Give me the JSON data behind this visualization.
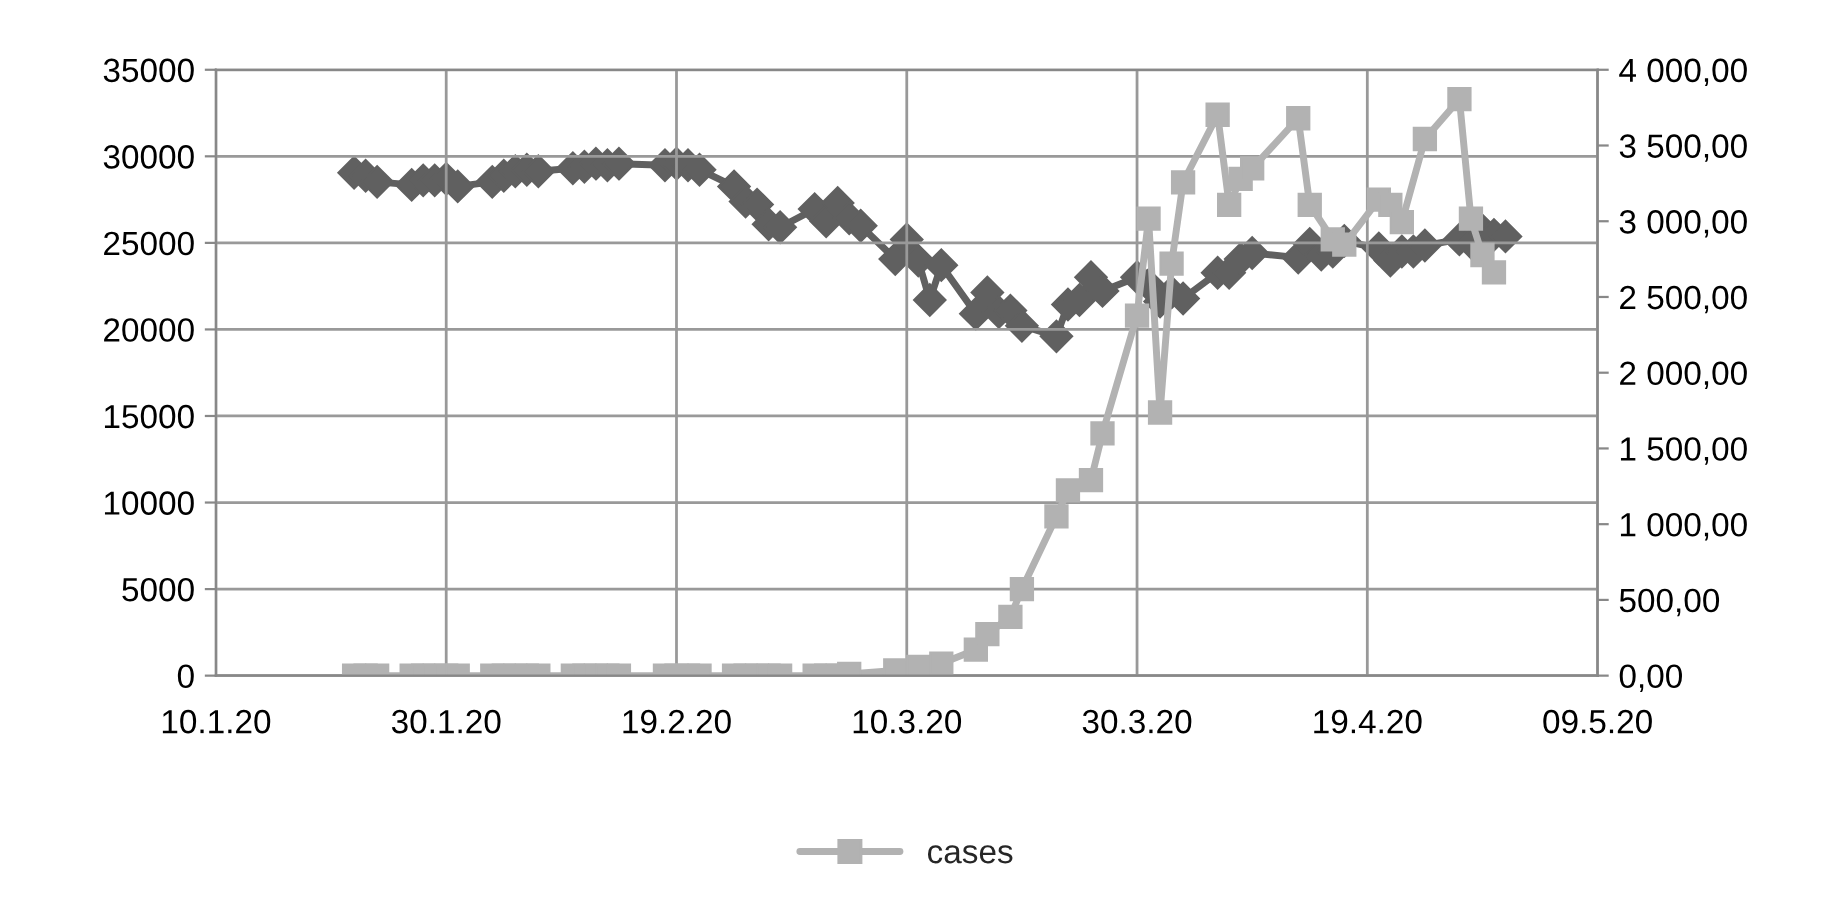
{
  "chart_data": {
    "type": "line",
    "xlim": [
      "2020-01-10",
      "2020-05-09"
    ],
    "xticks": [
      {
        "value": "2020-01-10",
        "label": "10.1.20"
      },
      {
        "value": "2020-01-30",
        "label": "30.1.20"
      },
      {
        "value": "2020-02-19",
        "label": "19.2.20"
      },
      {
        "value": "2020-03-10",
        "label": "10.3.20"
      },
      {
        "value": "2020-03-30",
        "label": "30.3.20"
      },
      {
        "value": "2020-04-19",
        "label": "19.4.20"
      },
      {
        "value": "2020-05-09",
        "label": "09.5.20"
      }
    ],
    "ylim": [
      0,
      35000
    ],
    "yticks": [
      0,
      5000,
      10000,
      15000,
      20000,
      25000,
      30000,
      35000
    ],
    "y2lim": [
      0,
      4000
    ],
    "y2ticks": [
      {
        "value": 0,
        "label": "0,00"
      },
      {
        "value": 500,
        "label": "500,00"
      },
      {
        "value": 1000,
        "label": "1 000,00"
      },
      {
        "value": 1500,
        "label": "1 500,00"
      },
      {
        "value": 2000,
        "label": "2 000,00"
      },
      {
        "value": 2500,
        "label": "2 500,00"
      },
      {
        "value": 3000,
        "label": "3 000,00"
      },
      {
        "value": 3500,
        "label": "3 500,00"
      },
      {
        "value": 4000,
        "label": "4 000,00"
      }
    ],
    "grid": true,
    "legend": "bottom",
    "series": [
      {
        "name": "cases",
        "color": "#b2b2b2",
        "marker": "square",
        "x": [
          "2020-01-22",
          "2020-01-23",
          "2020-01-24",
          "2020-01-27",
          "2020-01-28",
          "2020-01-29",
          "2020-01-30",
          "2020-01-31",
          "2020-02-03",
          "2020-02-04",
          "2020-02-05",
          "2020-02-06",
          "2020-02-07",
          "2020-02-10",
          "2020-02-11",
          "2020-02-12",
          "2020-02-13",
          "2020-02-14",
          "2020-02-18",
          "2020-02-19",
          "2020-02-20",
          "2020-02-21",
          "2020-02-24",
          "2020-02-25",
          "2020-02-26",
          "2020-02-27",
          "2020-02-28",
          "2020-03-02",
          "2020-03-03",
          "2020-03-04",
          "2020-03-05",
          "2020-03-09",
          "2020-03-11",
          "2020-03-13",
          "2020-03-16",
          "2020-03-17",
          "2020-03-19",
          "2020-03-20",
          "2020-03-23",
          "2020-03-24",
          "2020-03-26",
          "2020-03-27",
          "2020-03-30",
          "2020-03-31",
          "2020-04-01",
          "2020-04-02",
          "2020-04-03",
          "2020-04-06",
          "2020-04-07",
          "2020-04-08",
          "2020-04-09",
          "2020-04-13",
          "2020-04-14",
          "2020-04-16",
          "2020-04-17",
          "2020-04-20",
          "2020-04-21",
          "2020-04-22",
          "2020-04-24",
          "2020-04-27",
          "2020-04-28",
          "2020-04-29",
          "2020-04-30"
        ],
        "values": [
          0,
          0,
          0,
          0,
          0,
          0,
          0,
          0,
          0,
          0,
          0,
          0,
          0,
          0,
          0,
          0,
          0,
          0,
          0,
          0,
          0,
          0,
          0,
          0,
          0,
          0,
          0,
          0,
          0,
          0,
          100,
          300,
          500,
          700,
          1500,
          2400,
          3400,
          5000,
          9200,
          10700,
          11300,
          14000,
          20800,
          26400,
          15200,
          23800,
          28500,
          32400,
          27200,
          28700,
          29300,
          32200,
          27200,
          25200,
          24900,
          27500,
          27200,
          26200,
          31000,
          33300,
          26400,
          24300,
          23300
        ]
      },
      {
        "color": "#606060",
        "marker": "diamond",
        "axis": "y2",
        "x": [
          "2020-01-22",
          "2020-01-23",
          "2020-01-24",
          "2020-01-27",
          "2020-01-28",
          "2020-01-29",
          "2020-01-30",
          "2020-01-31",
          "2020-02-03",
          "2020-02-04",
          "2020-02-05",
          "2020-02-06",
          "2020-02-07",
          "2020-02-10",
          "2020-02-11",
          "2020-02-12",
          "2020-02-13",
          "2020-02-14",
          "2020-02-18",
          "2020-02-19",
          "2020-02-20",
          "2020-02-21",
          "2020-02-24",
          "2020-02-25",
          "2020-02-26",
          "2020-02-27",
          "2020-02-28",
          "2020-03-02",
          "2020-03-03",
          "2020-03-04",
          "2020-03-05",
          "2020-03-06",
          "2020-03-09",
          "2020-03-10",
          "2020-03-11",
          "2020-03-12",
          "2020-03-13",
          "2020-03-16",
          "2020-03-17",
          "2020-03-18",
          "2020-03-19",
          "2020-03-20",
          "2020-03-23",
          "2020-03-24",
          "2020-03-25",
          "2020-03-26",
          "2020-03-27",
          "2020-03-30",
          "2020-03-31",
          "2020-04-01",
          "2020-04-02",
          "2020-04-03",
          "2020-04-06",
          "2020-04-07",
          "2020-04-08",
          "2020-04-09",
          "2020-04-13",
          "2020-04-14",
          "2020-04-15",
          "2020-04-16",
          "2020-04-17",
          "2020-04-20",
          "2020-04-21",
          "2020-04-22",
          "2020-04-23",
          "2020-04-24",
          "2020-04-27",
          "2020-04-28",
          "2020-04-29",
          "2020-04-30",
          "2020-05-01"
        ],
        "values": [
          3320,
          3300,
          3260,
          3240,
          3270,
          3270,
          3280,
          3230,
          3260,
          3300,
          3330,
          3340,
          3330,
          3350,
          3360,
          3380,
          3370,
          3380,
          3370,
          3380,
          3370,
          3340,
          3230,
          3130,
          3110,
          2980,
          2960,
          3080,
          3000,
          3120,
          3020,
          2970,
          2750,
          2880,
          2740,
          2480,
          2710,
          2390,
          2530,
          2400,
          2410,
          2310,
          2240,
          2450,
          2480,
          2630,
          2540,
          2630,
          2580,
          2470,
          2530,
          2490,
          2660,
          2660,
          2750,
          2790,
          2760,
          2850,
          2780,
          2800,
          2870,
          2820,
          2740,
          2800,
          2800,
          2840,
          2880,
          2860,
          2940,
          2910,
          2900
        ]
      }
    ]
  }
}
